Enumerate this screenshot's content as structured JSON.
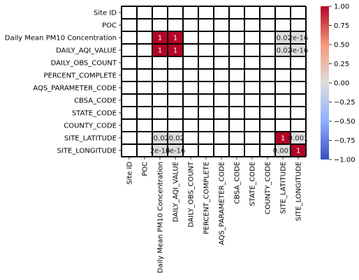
{
  "chart_data": {
    "type": "heatmap",
    "title": "",
    "xlabel": "",
    "ylabel": "",
    "row_labels": [
      "Site ID",
      "POC",
      "Daily Mean PM10 Concentration",
      "DAILY_AQI_VALUE",
      "DAILY_OBS_COUNT",
      "PERCENT_COMPLETE",
      "AQS_PARAMETER_CODE",
      "CBSA_CODE",
      "STATE_CODE",
      "COUNTY_CODE",
      "SITE_LATITUDE",
      "SITE_LONGITUDE"
    ],
    "col_labels": [
      "Site ID",
      "POC",
      "Daily Mean PM10 Concentration",
      "DAILY_AQI_VALUE",
      "DAILY_OBS_COUNT",
      "PERCENT_COMPLETE",
      "AQS_PARAMETER_CODE",
      "CBSA_CODE",
      "STATE_CODE",
      "COUNTY_CODE",
      "SITE_LATITUDE",
      "SITE_LONGITUDE"
    ],
    "cells": [
      {
        "row": 2,
        "col": 2,
        "value": 1,
        "label": "1"
      },
      {
        "row": 2,
        "col": 3,
        "value": 1,
        "label": "1"
      },
      {
        "row": 2,
        "col": 10,
        "value": -0.02,
        "label": "-0.02"
      },
      {
        "row": 2,
        "col": 11,
        "value": 0,
        "label": "2e-16"
      },
      {
        "row": 3,
        "col": 2,
        "value": 1,
        "label": "1"
      },
      {
        "row": 3,
        "col": 3,
        "value": 1,
        "label": "1"
      },
      {
        "row": 3,
        "col": 10,
        "value": -0.02,
        "label": "-0.02"
      },
      {
        "row": 3,
        "col": 11,
        "value": 0,
        "label": "3e-16"
      },
      {
        "row": 10,
        "col": 2,
        "value": -0.02,
        "label": "-0.02"
      },
      {
        "row": 10,
        "col": 3,
        "value": -0.02,
        "label": "-0.02"
      },
      {
        "row": 10,
        "col": 10,
        "value": 1,
        "label": "1"
      },
      {
        "row": 10,
        "col": 11,
        "value": 0.001,
        "label": "0.001"
      },
      {
        "row": 11,
        "col": 2,
        "value": 0,
        "label": "2e-16"
      },
      {
        "row": 11,
        "col": 3,
        "value": 0,
        "label": "3e-16"
      },
      {
        "row": 11,
        "col": 10,
        "value": 0.001,
        "label": "0.001"
      },
      {
        "row": 11,
        "col": 11,
        "value": 1,
        "label": "1"
      }
    ],
    "colorbar": {
      "min": -1.0,
      "max": 1.0,
      "colormap": "coolwarm",
      "ticks": [
        "1.00",
        "0.75",
        "0.50",
        "0.25",
        "0.00",
        "−0.25",
        "−0.50",
        "−0.75",
        "−1.00"
      ]
    },
    "grid": true,
    "missing_cell_color": "#ffffff",
    "cell_border_color": "#000000"
  }
}
